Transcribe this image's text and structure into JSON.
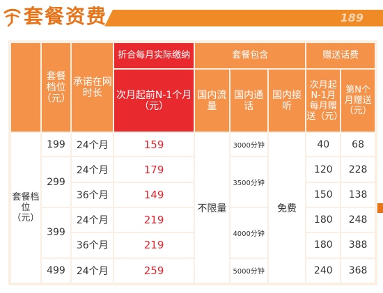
{
  "header": {
    "title": "套餐资费",
    "number": "189"
  },
  "table": {
    "headers": {
      "tier": "套餐档位（元）",
      "commitment": "承诺在网时长",
      "monthly_payment_group": "折合每月实际缴纳",
      "monthly_payment": "次月起前N-1个月（元）",
      "included_group": "套餐包含",
      "domestic_data": "国内流量",
      "domestic_calls": "国内通话",
      "domestic_receive": "国内接听",
      "bonus_group": "赠送话费",
      "bonus_first": "次月起N-1月每月赠送（元）",
      "bonus_nth": "第N个月赠送（元）"
    },
    "row_label": "套餐档位（元）",
    "data_value": "不限量",
    "receive_value": "免费",
    "calls": {
      "199": "3000分钟",
      "299": "3500分钟",
      "399": "4000分钟",
      "499": "5000分钟"
    },
    "rows": [
      {
        "tier": "199",
        "term": "24个月",
        "monthly": "159",
        "bonus_first": "40",
        "bonus_nth": "68"
      },
      {
        "tier": "299",
        "term": "24个月",
        "monthly": "179",
        "bonus_first": "120",
        "bonus_nth": "228"
      },
      {
        "tier": "",
        "term": "36个月",
        "monthly": "149",
        "bonus_first": "150",
        "bonus_nth": "138"
      },
      {
        "tier": "399",
        "term": "24个月",
        "monthly": "219",
        "bonus_first": "180",
        "bonus_nth": "248"
      },
      {
        "tier": "",
        "term": "36个月",
        "monthly": "219",
        "bonus_first": "180",
        "bonus_nth": "388"
      },
      {
        "tier": "499",
        "term": "24个月",
        "monthly": "259",
        "bonus_first": "240",
        "bonus_nth": "368"
      }
    ]
  },
  "colors": {
    "accent_orange": "#f08a26",
    "header_cell": "#f4924a",
    "highlight_red": "#e82a2f",
    "price_text": "#e8252d",
    "table_background": "#fbeee3"
  }
}
